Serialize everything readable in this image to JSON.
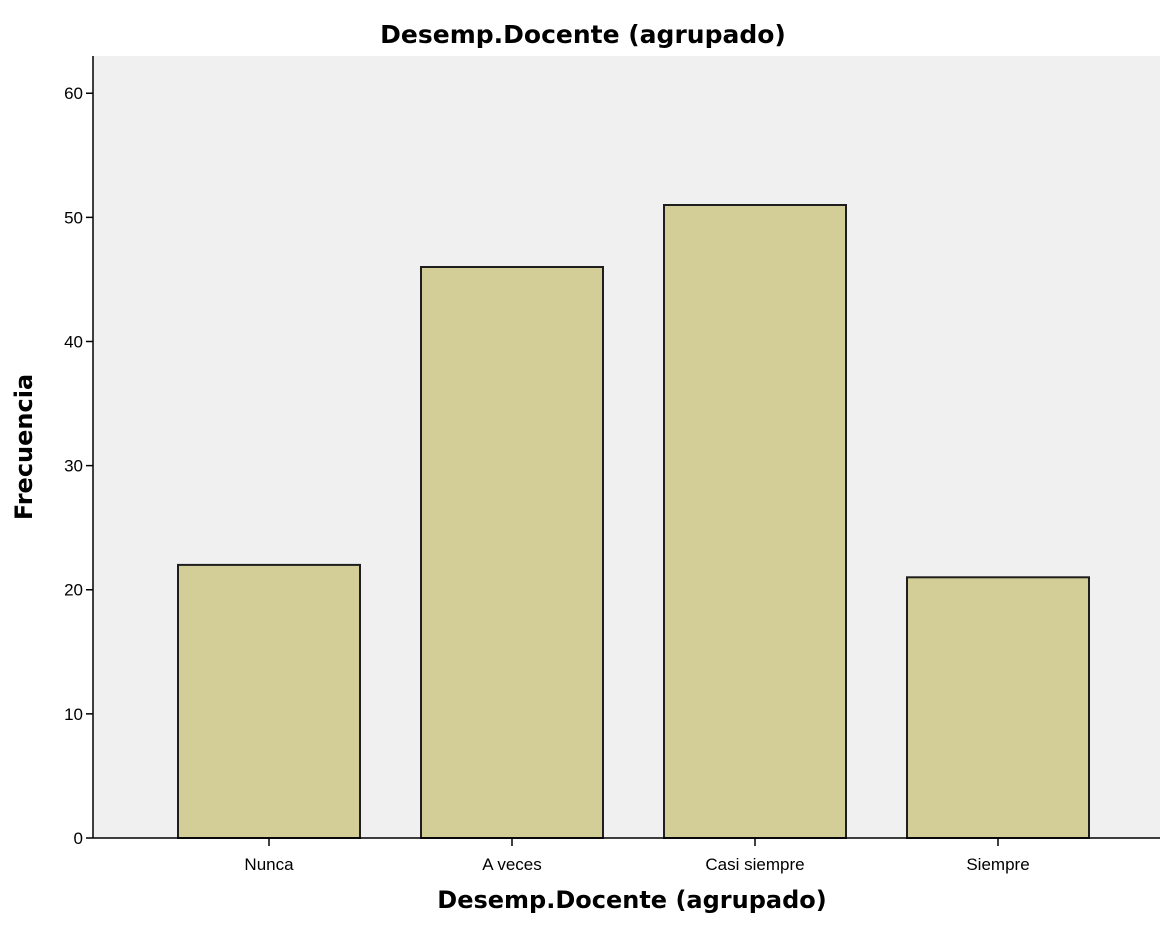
{
  "chart_data": {
    "type": "bar",
    "title": "Desemp.Docente (agrupado)",
    "xlabel": "Desemp.Docente (agrupado)",
    "ylabel": "Frecuencia",
    "categories": [
      "Nunca",
      "A veces",
      "Casi siempre",
      "Siempre"
    ],
    "values": [
      22,
      46,
      51,
      21
    ],
    "ylim": [
      0,
      63
    ],
    "yticks": [
      0,
      10,
      20,
      30,
      40,
      50,
      60
    ],
    "grid": false,
    "legend": "none",
    "colors": {
      "plot_background": "#f0f0f0",
      "bar_fill": "#d3ce97",
      "bar_stroke": "#1e1e1e",
      "axis": "#000000"
    }
  }
}
